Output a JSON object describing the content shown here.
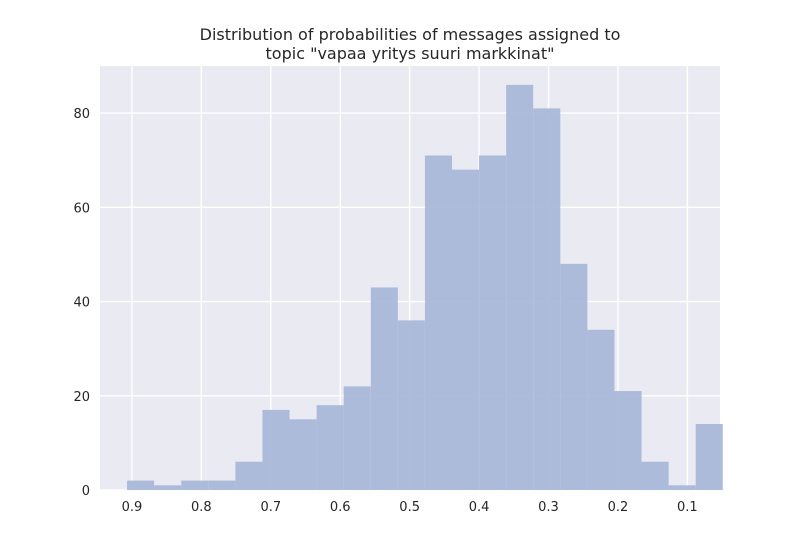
{
  "chart_data": {
    "type": "bar",
    "title_lines": [
      "Distribution of probabilities of messages assigned to",
      "topic \"vapaa yritys suuri markkinat\""
    ],
    "xlabel": "",
    "ylabel": "",
    "x_axis_reversed": true,
    "xlim": [
      0.946,
      0.053
    ],
    "ylim": [
      0,
      90
    ],
    "x_ticks": [
      0.9,
      0.8,
      0.7,
      0.6,
      0.5,
      0.4,
      0.3,
      0.2,
      0.1
    ],
    "x_tick_labels": [
      "0.9",
      "0.8",
      "0.7",
      "0.6",
      "0.5",
      "0.4",
      "0.3",
      "0.2",
      "0.1"
    ],
    "y_ticks": [
      0,
      20,
      40,
      60,
      80
    ],
    "y_tick_labels": [
      "0",
      "20",
      "40",
      "60",
      "80"
    ],
    "grid": true,
    "legend": "none",
    "colors": {
      "bars": "#a9b8d8",
      "background": "#eaeaf2",
      "grid": "#ffffff",
      "text": "#262626"
    },
    "bin_edges": [
      0.907,
      0.868,
      0.829,
      0.79,
      0.751,
      0.712,
      0.673,
      0.634,
      0.595,
      0.556,
      0.517,
      0.478,
      0.439,
      0.4,
      0.361,
      0.322,
      0.283,
      0.244,
      0.205,
      0.166,
      0.127,
      0.088,
      0.049
    ],
    "counts": [
      2,
      1,
      2,
      2,
      6,
      17,
      15,
      18,
      22,
      43,
      36,
      71,
      68,
      71,
      86,
      81,
      48,
      34,
      21,
      6,
      1,
      14
    ]
  }
}
